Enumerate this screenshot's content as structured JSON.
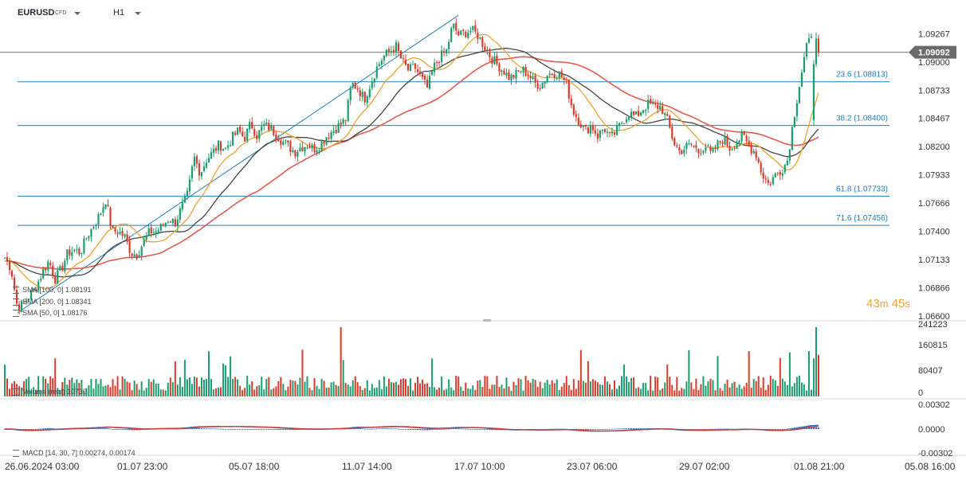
{
  "header": {
    "symbol": "EURUSD",
    "badge": "CFD",
    "timeframe": "H1"
  },
  "colors": {
    "up": "#1a9e6e",
    "down": "#d93b2b",
    "sma50": "#f0a030",
    "sma100": "#444444",
    "sma200": "#e05a4e",
    "fib": "#1d7fb8",
    "macd": "#2f75c0",
    "signal": "#d03a3a"
  },
  "price_axis": {
    "ticks": [
      "1.09267",
      "1.09000",
      "1.08733",
      "1.08467",
      "1.08200",
      "1.07933",
      "1.07666",
      "1.07400",
      "1.07133",
      "1.06866",
      "1.06600"
    ],
    "current": "1.09092"
  },
  "time_axis": {
    "labels": [
      "26.06.2024  03:00",
      "01.07  23:00",
      "05.07  18:00",
      "11.07  14:00",
      "17.07  10:00",
      "23.07  06:00",
      "29.07  02:00",
      "01.08  21:00",
      "05.08  16:00"
    ]
  },
  "legend": [
    {
      "text": "SMA  [100, 0]  1.08191"
    },
    {
      "text": "SMA  [200, 0]  1.08341"
    },
    {
      "text": "SMA  [50, 0]  1.08176"
    }
  ],
  "timer": {
    "minutes": "43",
    "m": "m",
    "seconds": "45",
    "s": "s"
  },
  "volume": {
    "label": "Volume  (real)  10730",
    "ticks": [
      "241223",
      "160815",
      "80407",
      "0"
    ]
  },
  "macd": {
    "label": "MACD  [14, 30, 7]  0.00274,  0.00174",
    "ticks": [
      "0.00302",
      "0.0000",
      "-0.00302"
    ]
  },
  "chart_data": {
    "type": "candlestick",
    "symbol": "EURUSD",
    "timeframe": "H1",
    "ylim": [
      1.066,
      1.0945
    ],
    "fibonacci": [
      {
        "label": "23.6 (1.08813)",
        "value": 1.08813
      },
      {
        "label": "38.2 (1.08400)",
        "value": 1.084
      },
      {
        "label": "61.8 (1.07733)",
        "value": 1.07733
      },
      {
        "label": "71.6 (1.07456)",
        "value": 1.07456
      }
    ],
    "current_price": 1.09092,
    "close_path": [
      1.0715,
      1.0705,
      1.0668,
      1.0672,
      1.068,
      1.0688,
      1.0702,
      1.0712,
      1.0695,
      1.0705,
      1.072,
      1.0722,
      1.072,
      1.0735,
      1.0745,
      1.0755,
      1.077,
      1.074,
      1.074,
      1.0735,
      1.072,
      1.0718,
      1.073,
      1.074,
      1.074,
      1.0745,
      1.0752,
      1.0748,
      1.0762,
      1.0775,
      1.081,
      1.0795,
      1.0808,
      1.0815,
      1.0822,
      1.0818,
      1.0828,
      1.0835,
      1.0828,
      1.0842,
      1.083,
      1.084,
      1.0838,
      1.0832,
      1.0825,
      1.082,
      1.0815,
      1.082,
      1.0822,
      1.0818,
      1.0822,
      1.083,
      1.0835,
      1.084,
      1.0845,
      1.088,
      1.0875,
      1.0865,
      1.088,
      1.0895,
      1.0905,
      1.091,
      1.0915,
      1.09,
      1.0892,
      1.0895,
      1.0885,
      1.0875,
      1.0895,
      1.0905,
      1.091,
      1.0935,
      1.0925,
      1.0928,
      1.093,
      1.0925,
      1.0915,
      1.0905,
      1.0898,
      1.0892,
      1.0885,
      1.0888,
      1.0893,
      1.0888,
      1.088,
      1.0878,
      1.0888,
      1.089,
      1.0888,
      1.088,
      1.0855,
      1.0845,
      1.0835,
      1.084,
      1.083,
      1.0838,
      1.0828,
      1.0835,
      1.0845,
      1.0852,
      1.0848,
      1.0855,
      1.086,
      1.0858,
      1.0858,
      1.0845,
      1.0825,
      1.0815,
      1.082,
      1.0822,
      1.0815,
      1.0822,
      1.0812,
      1.0822,
      1.0828,
      1.0818,
      1.0825,
      1.083,
      1.082,
      1.0815,
      1.0795,
      1.0785,
      1.0792,
      1.0798,
      1.0805,
      1.0845,
      1.088,
      1.0912,
      1.0926,
      1.0909
    ]
  }
}
